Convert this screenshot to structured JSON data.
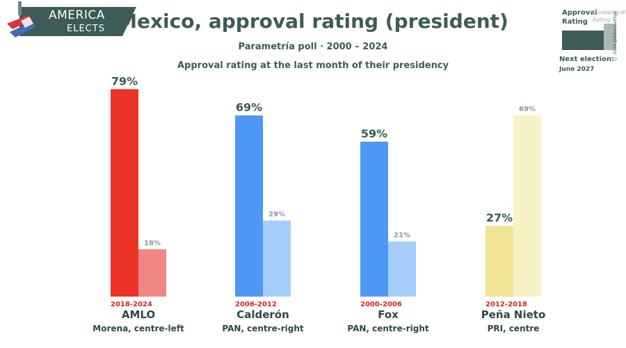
{
  "branding": {
    "logo_line1": "AMERICA",
    "logo_line2": "ELECTS",
    "copyright": "© 2024 @AmericaElige"
  },
  "header": {
    "title": "Mexico, approval rating (president)",
    "subtitle": "Parametría poll · 2000 – 2024",
    "note": "Approval rating at the last month of their presidency"
  },
  "legend": {
    "approve": "Approval Rating",
    "disapprove": "Disapproval Rating",
    "next_election_label": "Next election:",
    "next_election_date": "June 2027"
  },
  "chart_data": {
    "type": "bar",
    "title": "Mexico, approval rating (president)",
    "ylim": [
      0,
      100
    ],
    "categories": [
      {
        "name": "AMLO",
        "years": "2018-2024",
        "party": "Morena, centre-left",
        "approve": 79,
        "disapprove": 18,
        "approve_label": "79%",
        "disapprove_label": "18%",
        "approve_color": "#ec3325",
        "disapprove_color": "#f08683"
      },
      {
        "name": "Calderón",
        "years": "2006-2012",
        "party": "PAN, centre-right",
        "approve": 69,
        "disapprove": 29,
        "approve_label": "69%",
        "disapprove_label": "29%",
        "approve_color": "#4f98f5",
        "disapprove_color": "#a5cdfb"
      },
      {
        "name": "Fox",
        "years": "2000-2006",
        "party": "PAN, centre-right",
        "approve": 59,
        "disapprove": 21,
        "approve_label": "59%",
        "disapprove_label": "21%",
        "approve_color": "#4f98f5",
        "disapprove_color": "#a5cdfb"
      },
      {
        "name": "Peña Nieto",
        "years": "2012-2018",
        "party": "PRI, centre",
        "approve": 27,
        "disapprove": 69,
        "approve_label": "27%",
        "disapprove_label": "69%",
        "approve_color": "#efe494",
        "disapprove_color": "#f7f1c6"
      }
    ],
    "series": [
      {
        "name": "Approval Rating"
      },
      {
        "name": "Disapproval Rating"
      }
    ]
  }
}
